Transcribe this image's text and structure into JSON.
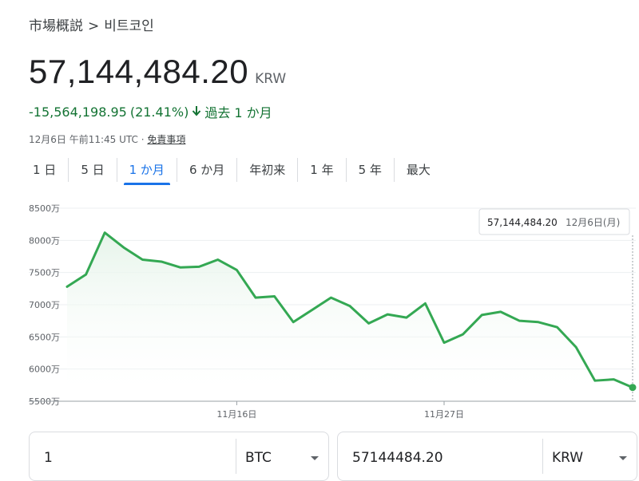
{
  "breadcrumb": {
    "parent": "市場概説",
    "separator": ">",
    "current": "비트코인"
  },
  "price": {
    "value": "57,144,484.20",
    "currency": "KRW"
  },
  "change": {
    "amount": "-15,564,198.95",
    "percent": "(21.41%)",
    "period": "過去 1 か月"
  },
  "timestamp": {
    "text": "12月6日 午前11:45 UTC ·",
    "disclaimer": "免責事項"
  },
  "tabs": [
    "1 日",
    "5 日",
    "1 か月",
    "6 か月",
    "年初来",
    "1 年",
    "5 年",
    "最大"
  ],
  "active_tab": 2,
  "colors": {
    "line": "#34a853",
    "fill": "#e6f4ea",
    "active_tab": "#1a73e8",
    "change": "#137333"
  },
  "chart_data": {
    "type": "area",
    "ylim": [
      5500,
      8500
    ],
    "yticks": [
      5500,
      6000,
      6500,
      7000,
      7500,
      8000,
      8500
    ],
    "ytick_suffix": "万",
    "x_labels": [
      {
        "index": 9,
        "label": "11月16日"
      },
      {
        "index": 20,
        "label": "11月27日"
      }
    ],
    "values": [
      7280,
      7470,
      8120,
      7890,
      7700,
      7670,
      7580,
      7590,
      7700,
      7540,
      7110,
      7130,
      6730,
      6920,
      7110,
      6980,
      6710,
      6850,
      6800,
      7020,
      6410,
      6540,
      6840,
      6890,
      6750,
      6730,
      6650,
      6340,
      5820,
      5840,
      5714.45
    ],
    "tooltip": {
      "value": "57,144,484.20",
      "date": "12月6日(月)"
    }
  },
  "converter": {
    "left": {
      "value": "1",
      "unit": "BTC"
    },
    "right": {
      "value": "57144484.20",
      "unit": "KRW"
    }
  }
}
